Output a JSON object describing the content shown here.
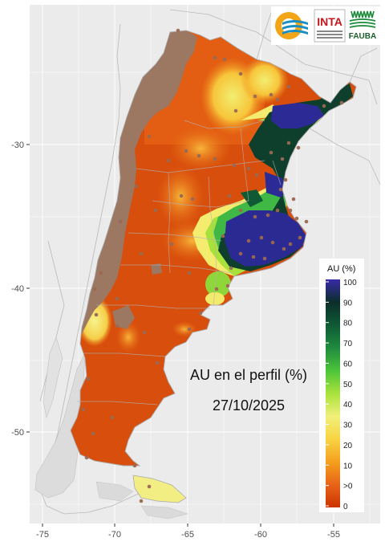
{
  "map": {
    "title": "AU en el perfil (%)",
    "date": "27/10/2025",
    "lon_ticks": [
      "-75",
      "-70",
      "-65",
      "-60",
      "-55"
    ],
    "lat_ticks": [
      "-30",
      "-40",
      "-50"
    ],
    "lon_range": [
      -77,
      -52
    ],
    "lat_range": [
      -56,
      -21
    ]
  },
  "legend": {
    "title": "AU (%)",
    "labels": [
      "100",
      "90",
      "80",
      "70",
      "60",
      "50",
      "40",
      "30",
      "20",
      "10",
      ">0",
      "0"
    ]
  },
  "logos": {
    "inta": "INTA",
    "fauba": "FAUBA"
  },
  "colors": {
    "panel": "#ebebeb",
    "gridline": "#ffffff",
    "zero": "#cc4400",
    "low": "#e06010",
    "mid": "#f5b020",
    "yellow": "#f4ef6a",
    "lime": "#a6e23a",
    "green": "#2fa34a",
    "dark_green": "#0b3a2a",
    "indigo": "#2b2a9a",
    "mountain": "#9e7a64",
    "stations": "#9a6a52",
    "neighbor_land": "#dedede"
  }
}
